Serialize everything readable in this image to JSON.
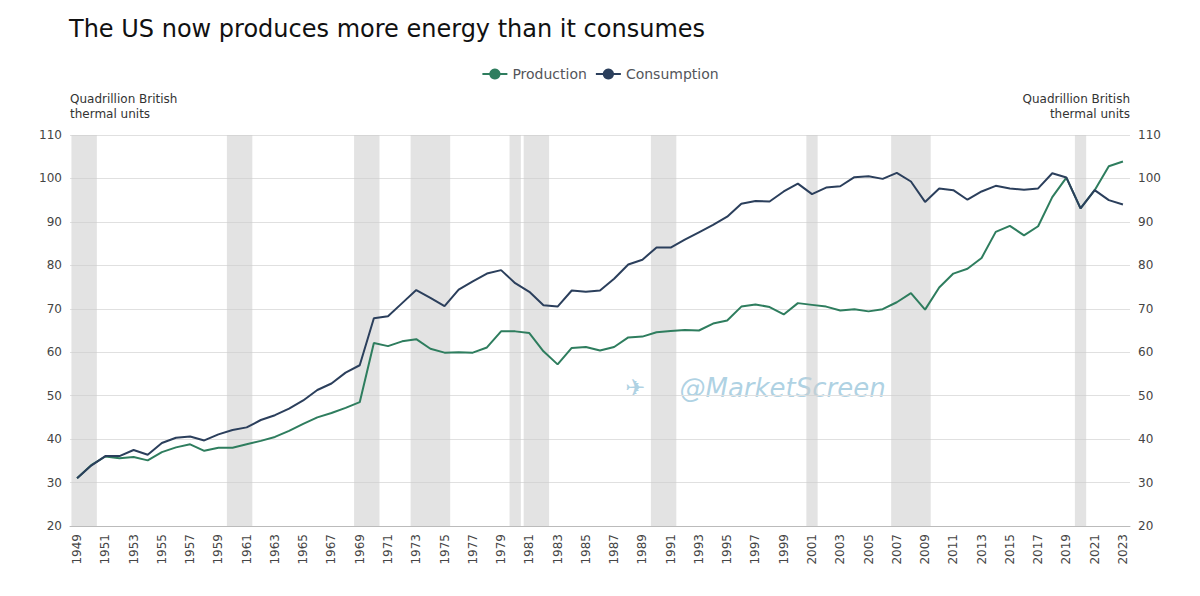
{
  "chart_data": {
    "type": "line",
    "title": "The US now produces more energy than it consumes",
    "ylabel": "Quadrillion British\nthermal units",
    "y2label": "Quadrillion British\nthermal units",
    "annotations": [
      "✈",
      "@MarketScreen"
    ],
    "x": [
      1949,
      1950,
      1951,
      1952,
      1953,
      1954,
      1955,
      1956,
      1957,
      1958,
      1959,
      1960,
      1961,
      1962,
      1963,
      1964,
      1965,
      1966,
      1967,
      1968,
      1969,
      1970,
      1971,
      1972,
      1973,
      1974,
      1975,
      1976,
      1977,
      1978,
      1979,
      1980,
      1981,
      1982,
      1983,
      1984,
      1985,
      1986,
      1987,
      1988,
      1989,
      1990,
      1991,
      1992,
      1993,
      1994,
      1995,
      1996,
      1997,
      1998,
      1999,
      2000,
      2001,
      2002,
      2003,
      2004,
      2005,
      2006,
      2007,
      2008,
      2009,
      2010,
      2011,
      2012,
      2013,
      2014,
      2015,
      2016,
      2017,
      2018,
      2019,
      2020,
      2021,
      2022,
      2023
    ],
    "series": [
      {
        "name": "Production",
        "color": "#2e7d5e",
        "values": [
          31.0,
          34.0,
          36.0,
          35.6,
          35.9,
          35.1,
          37.0,
          38.1,
          38.8,
          37.3,
          38.0,
          38.0,
          38.8,
          39.6,
          40.5,
          41.9,
          43.5,
          45.0,
          46.0,
          47.2,
          48.5,
          62.1,
          61.4,
          62.5,
          63.0,
          60.8,
          59.9,
          60.0,
          59.9,
          61.1,
          64.8,
          64.8,
          64.4,
          60.2,
          57.2,
          61.0,
          61.2,
          60.4,
          61.2,
          63.4,
          63.6,
          64.6,
          64.9,
          65.1,
          65.0,
          66.6,
          67.3,
          70.5,
          71.0,
          70.4,
          68.7,
          71.3,
          70.9,
          70.5,
          69.6,
          69.9,
          69.4,
          69.9,
          71.5,
          73.6,
          69.8,
          74.9,
          78.1,
          79.2,
          81.7,
          87.7,
          89.1,
          86.9,
          89.0,
          95.7,
          100.2,
          93.1,
          97.3,
          102.8,
          103.9
        ]
      },
      {
        "name": "Consumption",
        "color": "#2b3f5c",
        "values": [
          31.0,
          33.9,
          36.1,
          36.1,
          37.5,
          36.4,
          39.1,
          40.3,
          40.6,
          39.7,
          41.1,
          42.1,
          42.7,
          44.4,
          45.5,
          47.0,
          48.9,
          51.3,
          52.8,
          55.3,
          57.0,
          67.8,
          68.3,
          71.3,
          74.3,
          72.5,
          70.6,
          74.4,
          76.3,
          78.1,
          78.9,
          75.9,
          73.9,
          70.8,
          70.5,
          74.2,
          73.9,
          74.2,
          76.9,
          80.2,
          81.3,
          84.1,
          84.1,
          85.9,
          87.6,
          89.3,
          91.2,
          94.2,
          94.8,
          94.7,
          97.0,
          98.8,
          96.4,
          97.9,
          98.2,
          100.3,
          100.5,
          99.9,
          101.3,
          99.3,
          94.6,
          97.7,
          97.3,
          95.1,
          97.0,
          98.3,
          97.7,
          97.4,
          97.7,
          101.2,
          100.2,
          93.1,
          97.3,
          95.0,
          94.0
        ]
      }
    ],
    "recession_bands": [
      [
        1949,
        1950
      ],
      [
        1960,
        1961
      ],
      [
        1969,
        1970
      ],
      [
        1973,
        1975
      ],
      [
        1980,
        1980
      ],
      [
        1981,
        1982
      ],
      [
        1990,
        1991
      ],
      [
        2001,
        2001
      ],
      [
        2007,
        2009
      ],
      [
        2020,
        2020
      ]
    ],
    "xlim": [
      1948.5,
      2023.5
    ],
    "xticks": [
      1949,
      1951,
      1953,
      1955,
      1957,
      1959,
      1961,
      1963,
      1965,
      1967,
      1969,
      1971,
      1973,
      1975,
      1977,
      1979,
      1981,
      1983,
      1985,
      1987,
      1989,
      1991,
      1993,
      1995,
      1997,
      1999,
      2001,
      2003,
      2005,
      2007,
      2009,
      2011,
      2013,
      2015,
      2017,
      2019,
      2021,
      2023
    ],
    "ylim": [
      20,
      110
    ],
    "yticks": [
      20,
      30,
      40,
      50,
      60,
      70,
      80,
      90,
      100,
      110
    ],
    "y2lim": [
      20,
      110
    ],
    "y2ticks": [
      20,
      30,
      40,
      50,
      60,
      70,
      80,
      90,
      100,
      110
    ],
    "grid": true,
    "legend": "top"
  }
}
